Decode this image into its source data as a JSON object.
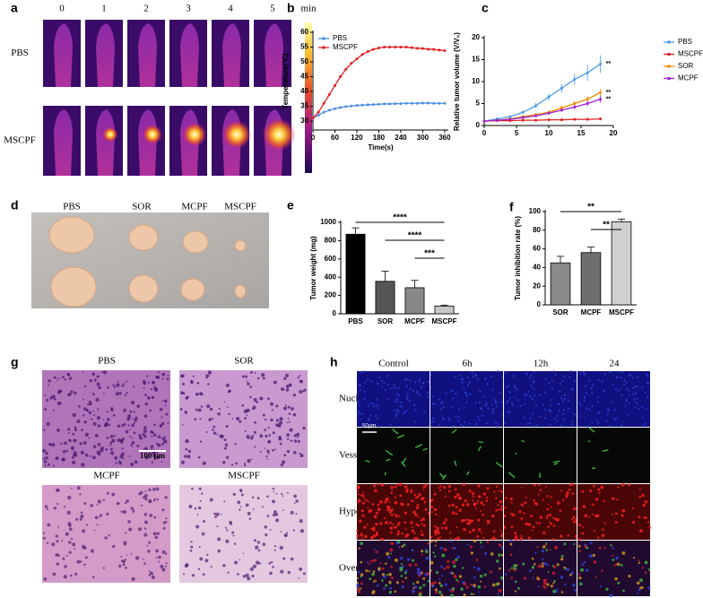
{
  "figure": {
    "panel_letters": [
      "a",
      "b",
      "c",
      "d",
      "e",
      "f",
      "g",
      "h"
    ],
    "a": {
      "time_labels": [
        "0",
        "1",
        "2",
        "3",
        "4",
        "5"
      ],
      "unit": "min",
      "rows": [
        "PBS",
        "MSCPF"
      ]
    },
    "d": {
      "labels": [
        "PBS",
        "SOR",
        "MCPF",
        "MSCPF"
      ]
    },
    "g": {
      "labels": [
        "PBS",
        "SOR",
        "MCPF",
        "MSCPF"
      ],
      "scale": "100 μm"
    },
    "h": {
      "columns": [
        "Control",
        "6h",
        "12h",
        "24"
      ],
      "rows": [
        "Nucleus",
        "Vessel",
        "Hypoxia",
        "Overlay"
      ],
      "scale": "50μm"
    }
  },
  "chart_data": [
    {
      "type": "line",
      "y_label": "Temperature(℃)",
      "x_label": "Time(s)",
      "x": [
        0,
        15,
        30,
        45,
        60,
        75,
        90,
        105,
        120,
        135,
        150,
        165,
        180,
        195,
        210,
        225,
        240,
        255,
        270,
        285,
        300,
        315,
        330,
        345,
        360
      ],
      "xlim": [
        0,
        370
      ],
      "xticks": [
        0,
        60,
        120,
        180,
        240,
        300,
        360
      ],
      "ylim": [
        27,
        60
      ],
      "yticks": [
        30,
        35,
        40,
        45,
        50,
        55,
        60
      ],
      "legend": "upper left",
      "series": [
        {
          "name": "PBS",
          "color": "#4a90e2",
          "values": [
            31,
            32,
            33,
            33.7,
            34.2,
            34.6,
            34.9,
            35.1,
            35.3,
            35.4,
            35.5,
            35.6,
            35.7,
            35.8,
            35.8,
            35.9,
            35.9,
            36,
            36,
            36,
            36.1,
            36.1,
            36,
            36,
            36
          ]
        },
        {
          "name": "MSCPF",
          "color": "#e02020",
          "values": [
            31,
            33,
            36,
            39,
            42,
            45,
            47.5,
            49.5,
            51,
            52.5,
            53.5,
            54.2,
            54.7,
            55,
            55,
            55,
            55,
            55,
            54.8,
            54.6,
            54.5,
            54.3,
            54.2,
            54,
            53.8
          ]
        }
      ]
    },
    {
      "type": "line",
      "y_label": "Relative tumor volume (V/V₀)",
      "x": [
        0,
        2,
        4,
        6,
        8,
        10,
        12,
        14,
        16,
        18
      ],
      "xlim": [
        0,
        20
      ],
      "xticks": [
        0,
        5,
        10,
        15,
        20
      ],
      "ylim": [
        0,
        20
      ],
      "yticks": [
        0,
        5,
        10,
        15,
        20
      ],
      "legend": "right",
      "series": [
        {
          "name": "PBS",
          "color": "#4a9be8",
          "values": [
            1,
            1.5,
            2,
            3,
            4.5,
            6.5,
            8.5,
            10.5,
            12,
            14
          ],
          "errors": [
            0.1,
            0.2,
            0.3,
            0.4,
            0.6,
            0.8,
            1,
            1.3,
            1.8,
            2
          ],
          "end_label": "**"
        },
        {
          "name": "MSCPF",
          "color": "#e02020",
          "values": [
            1,
            1.1,
            1.1,
            1.2,
            1.2,
            1.3,
            1.3,
            1.4,
            1.4,
            1.5
          ],
          "errors": [
            0.1,
            0.1,
            0.1,
            0.1,
            0.1,
            0.1,
            0.1,
            0.2,
            0.2,
            0.3
          ]
        },
        {
          "name": "SOR",
          "color": "#f08a00",
          "values": [
            1,
            1.2,
            1.5,
            2,
            2.5,
            3,
            4,
            5,
            6,
            7.5
          ],
          "errors": [
            0.1,
            0.1,
            0.2,
            0.2,
            0.3,
            0.4,
            0.5,
            0.6,
            0.7,
            0.8
          ],
          "end_label": "**"
        },
        {
          "name": "MCPF",
          "color": "#a020d0",
          "values": [
            1,
            1.2,
            1.4,
            1.8,
            2.2,
            2.8,
            3.5,
            4.2,
            5,
            6
          ],
          "errors": [
            0.1,
            0.1,
            0.2,
            0.2,
            0.3,
            0.3,
            0.4,
            0.5,
            0.6,
            0.8
          ],
          "end_label": "**"
        }
      ]
    },
    {
      "type": "bar",
      "y_label": "Tumor weight (mg)",
      "categories": [
        "PBS",
        "SOR",
        "MCPF",
        "MSCPF"
      ],
      "values": [
        870,
        355,
        285,
        85
      ],
      "errors": [
        70,
        110,
        80,
        10
      ],
      "colors": [
        "#000000",
        "#555555",
        "#888888",
        "#c8c8c8"
      ],
      "ylim": [
        0,
        1000
      ],
      "yticks": [
        0,
        200,
        400,
        600,
        800,
        1000
      ],
      "brackets": [
        {
          "text": "****",
          "from": "PBS",
          "to": "MSCPF"
        },
        {
          "text": "****",
          "from": "SOR",
          "to": "MSCPF"
        },
        {
          "text": "***",
          "from": "MCPF",
          "to": "MSCPF"
        }
      ]
    },
    {
      "type": "bar",
      "y_label": "Tumor inhibition rate (%)",
      "categories": [
        "SOR",
        "MCPF",
        "MSCPF"
      ],
      "values": [
        45,
        56,
        89
      ],
      "errors": [
        7,
        6,
        3
      ],
      "colors": [
        "#8a8a8a",
        "#6e6e6e",
        "#d0d0d0"
      ],
      "ylim": [
        0,
        100
      ],
      "yticks": [
        0,
        20,
        40,
        60,
        80,
        100
      ],
      "brackets": [
        {
          "text": "**",
          "from": "SOR",
          "to": "MSCPF"
        },
        {
          "text": "**",
          "from": "MCPF",
          "to": "MSCPF"
        }
      ]
    }
  ]
}
